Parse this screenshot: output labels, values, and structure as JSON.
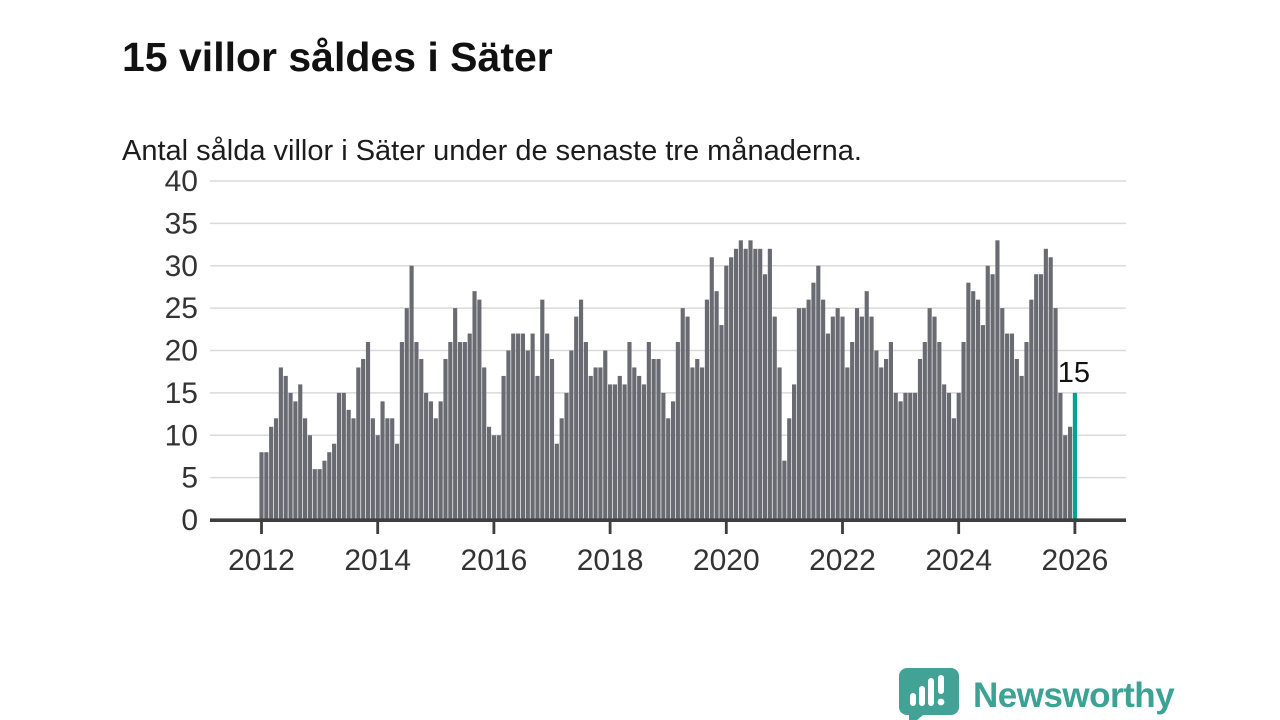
{
  "header": {
    "title": "15 villor såldes i Säter",
    "subtitle": "Antal sålda villor i Säter under de senaste tre månaderna."
  },
  "logo": {
    "text": "Newsworthy",
    "icon": "bar-chart-speech-bubble-icon"
  },
  "colors": {
    "bar": "#6A6A72",
    "highlight": "#00A39A",
    "gridline": "#DADADA",
    "axis": "#3E3E3E",
    "tick_label": "#333333",
    "title": "#111111",
    "logo_teal": "#3BA294",
    "logo_bubble": "#41A295",
    "background": "#FFFFFF"
  },
  "chart_data": {
    "type": "bar",
    "title": "15 villor såldes i Säter",
    "subtitle": "Antal sålda villor i Säter under de senaste tre månaderna.",
    "x_unit": "month",
    "x_start": "2012-01",
    "x_end": "2026-01",
    "x_tick_labels": [
      "2012",
      "2014",
      "2016",
      "2018",
      "2020",
      "2022",
      "2024",
      "2026"
    ],
    "y_ticks": [
      0,
      5,
      10,
      15,
      20,
      25,
      30,
      35,
      40
    ],
    "ylim": [
      0,
      40
    ],
    "grid": "horizontal",
    "legend": "none",
    "annotation": {
      "text": "15",
      "target": "last-bar"
    },
    "highlight_last": true,
    "values": [
      8,
      8,
      11,
      12,
      18,
      17,
      15,
      14,
      16,
      12,
      10,
      6,
      6,
      7,
      8,
      9,
      15,
      15,
      13,
      12,
      18,
      19,
      21,
      12,
      10,
      14,
      12,
      12,
      9,
      21,
      25,
      30,
      21,
      19,
      15,
      14,
      12,
      14,
      19,
      21,
      25,
      21,
      21,
      22,
      27,
      26,
      18,
      11,
      10,
      10,
      17,
      20,
      22,
      22,
      22,
      20,
      22,
      17,
      26,
      22,
      19,
      9,
      12,
      15,
      20,
      24,
      26,
      21,
      17,
      18,
      18,
      20,
      16,
      16,
      17,
      16,
      21,
      18,
      17,
      16,
      21,
      19,
      19,
      15,
      12,
      14,
      21,
      25,
      24,
      18,
      19,
      18,
      26,
      31,
      27,
      23,
      30,
      31,
      32,
      33,
      32,
      33,
      32,
      32,
      29,
      32,
      24,
      18,
      7,
      12,
      16,
      25,
      25,
      26,
      28,
      30,
      26,
      22,
      24,
      25,
      24,
      18,
      21,
      25,
      24,
      27,
      24,
      20,
      18,
      19,
      21,
      15,
      14,
      15,
      15,
      15,
      19,
      21,
      25,
      24,
      21,
      16,
      15,
      12,
      15,
      21,
      28,
      27,
      26,
      23,
      30,
      29,
      33,
      25,
      22,
      22,
      19,
      17,
      21,
      26,
      29,
      29,
      32,
      31,
      25,
      15,
      10,
      11,
      15
    ]
  }
}
